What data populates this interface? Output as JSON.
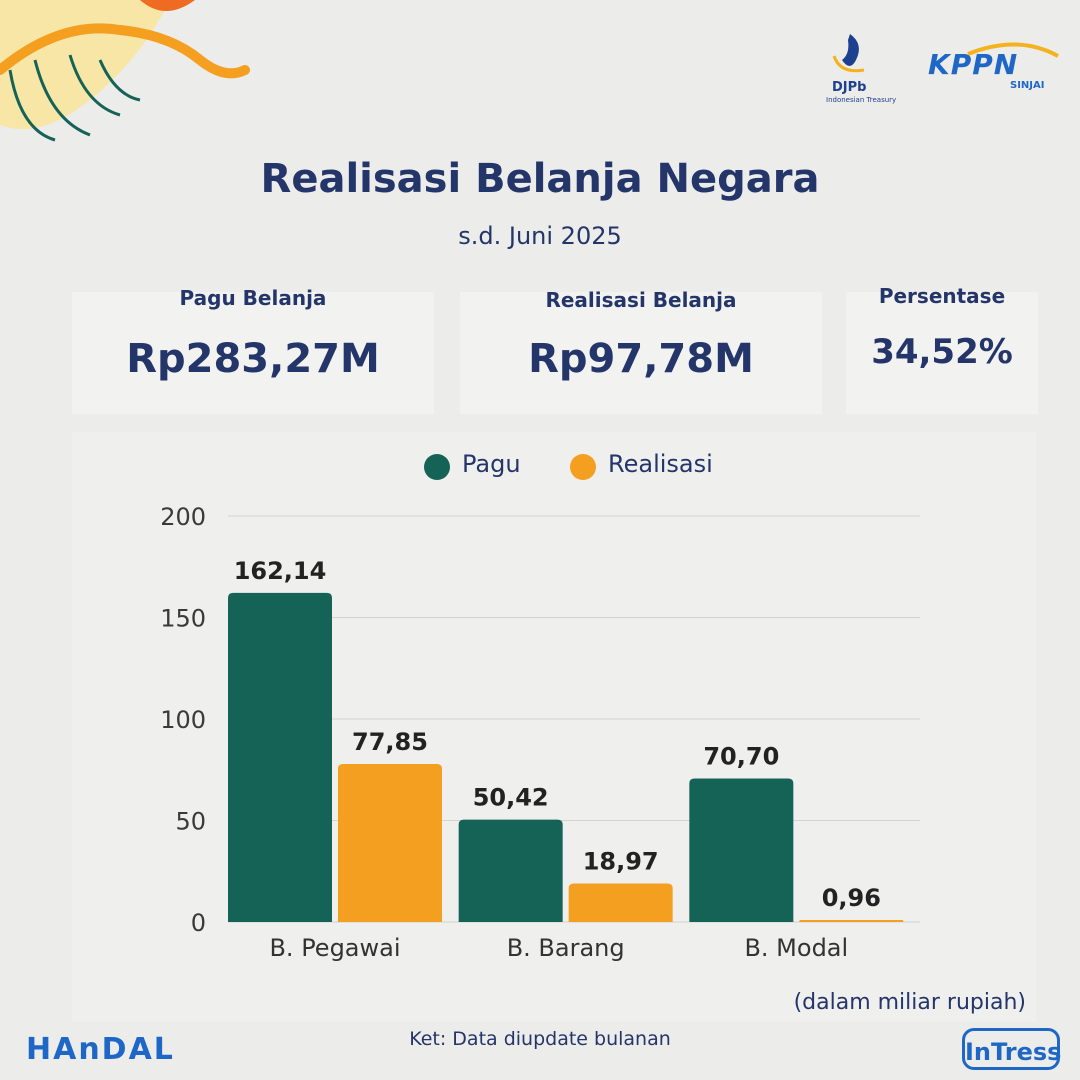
{
  "header": {
    "title": "Realisasi Belanja Negara",
    "subtitle": "s.d. Juni 2025"
  },
  "logos": {
    "djpb": "DJPb",
    "djpb_sub": "Indonesian Treasury",
    "kppn": "KPPN",
    "kppn_sub": "SINJAI",
    "handal": "HAnDAL",
    "intress": "InTress"
  },
  "cards": {
    "pagu": {
      "label": "Pagu Belanja",
      "value": "Rp283,27M"
    },
    "realisasi": {
      "label": "Realisasi Belanja",
      "value": "Rp97,78M"
    },
    "persentase": {
      "label": "Persentase",
      "value": "34,52%"
    }
  },
  "chart_data": {
    "type": "bar",
    "categories": [
      "B. Pegawai",
      "B. Barang",
      "B. Modal"
    ],
    "series": [
      {
        "name": "Pagu",
        "color": "#156356",
        "values": [
          162.14,
          50.42,
          70.7
        ],
        "labels": [
          "162,14",
          "50,42",
          "70,70"
        ]
      },
      {
        "name": "Realisasi",
        "color": "#f49f1f",
        "values": [
          77.85,
          18.97,
          0.96
        ],
        "labels": [
          "77,85",
          "18,97",
          "0,96"
        ]
      }
    ],
    "yticks": [
      "0",
      "50",
      "100",
      "150",
      "200"
    ],
    "ylim": [
      0,
      200
    ],
    "grid": true,
    "legend": "top-center"
  },
  "footer": {
    "unit": "(dalam miliar rupiah)",
    "note": "Ket: Data diupdate bulanan"
  }
}
